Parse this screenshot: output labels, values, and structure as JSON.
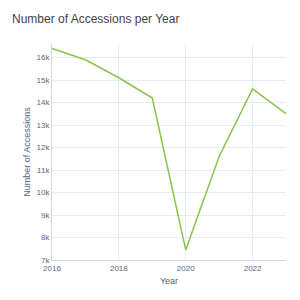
{
  "chart_data": {
    "type": "line",
    "title": "Number of Accessions per Year",
    "x_label": "Year",
    "y_label": "Number of Accessions",
    "x": [
      2016,
      2017,
      2018,
      2019,
      2020,
      2021,
      2022,
      2023
    ],
    "values": [
      16400,
      15900,
      15100,
      14200,
      7450,
      11600,
      14600,
      13500
    ],
    "color": "#8bc34a",
    "xlim": [
      2016,
      2023
    ],
    "xticks": [
      2016,
      2018,
      2020,
      2022
    ],
    "ylim": [
      7000,
      16600
    ],
    "yticks": [
      {
        "value": 7000,
        "label": "7k"
      },
      {
        "value": 8000,
        "label": "8k"
      },
      {
        "value": 9000,
        "label": "9k"
      },
      {
        "value": 10000,
        "label": "10k"
      },
      {
        "value": 11000,
        "label": "11k"
      },
      {
        "value": 12000,
        "label": "12k"
      },
      {
        "value": 13000,
        "label": "13k"
      },
      {
        "value": 14000,
        "label": "14k"
      },
      {
        "value": 15000,
        "label": "15k"
      },
      {
        "value": 16000,
        "label": "16k"
      }
    ],
    "grid": true
  }
}
